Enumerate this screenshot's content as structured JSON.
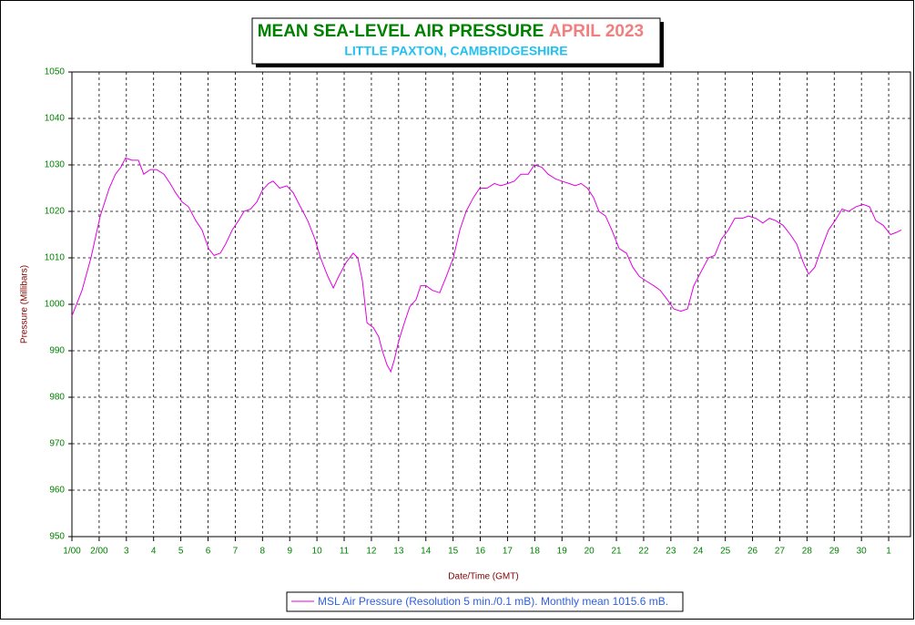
{
  "chart_data": {
    "type": "line",
    "title": "MEAN SEA-LEVEL AIR PRESSURE",
    "period": "APRIL 2023",
    "subtitle": "LITTLE PAXTON, CAMBRIDGESHIRE",
    "xlabel": "Date/Time (GMT)",
    "ylabel": "Pressure (Millibars)",
    "xlim": [
      0,
      30.8
    ],
    "ylim": [
      950,
      1050
    ],
    "xticks": [
      {
        "value": 0,
        "label": "1/00"
      },
      {
        "value": 1,
        "label": "2/00"
      },
      {
        "value": 2,
        "label": "3"
      },
      {
        "value": 3,
        "label": "4"
      },
      {
        "value": 4,
        "label": "5"
      },
      {
        "value": 5,
        "label": "6"
      },
      {
        "value": 6,
        "label": "7"
      },
      {
        "value": 7,
        "label": "8"
      },
      {
        "value": 8,
        "label": "9"
      },
      {
        "value": 9,
        "label": "10"
      },
      {
        "value": 10,
        "label": "11"
      },
      {
        "value": 11,
        "label": "12"
      },
      {
        "value": 12,
        "label": "13"
      },
      {
        "value": 13,
        "label": "14"
      },
      {
        "value": 14,
        "label": "15"
      },
      {
        "value": 15,
        "label": "16"
      },
      {
        "value": 16,
        "label": "17"
      },
      {
        "value": 17,
        "label": "18"
      },
      {
        "value": 18,
        "label": "19"
      },
      {
        "value": 19,
        "label": "20"
      },
      {
        "value": 20,
        "label": "21"
      },
      {
        "value": 21,
        "label": "22"
      },
      {
        "value": 22,
        "label": "23"
      },
      {
        "value": 23,
        "label": "24"
      },
      {
        "value": 24,
        "label": "25"
      },
      {
        "value": 25,
        "label": "26"
      },
      {
        "value": 26,
        "label": "27"
      },
      {
        "value": 27,
        "label": "28"
      },
      {
        "value": 28,
        "label": "29"
      },
      {
        "value": 29,
        "label": "30"
      },
      {
        "value": 30,
        "label": "1"
      }
    ],
    "yticks": [
      950,
      960,
      970,
      980,
      990,
      1000,
      1010,
      1020,
      1030,
      1040,
      1050
    ],
    "grid": true,
    "x": [
      0,
      0.37,
      0.7,
      1.04,
      1.37,
      1.6,
      1.8,
      1.97,
      2.2,
      2.44,
      2.64,
      2.88,
      3.11,
      3.38,
      3.61,
      3.81,
      4.05,
      4.28,
      4.55,
      4.78,
      5.02,
      5.22,
      5.45,
      5.65,
      5.89,
      6.12,
      6.32,
      6.56,
      6.79,
      6.99,
      7.22,
      7.39,
      7.63,
      7.89,
      8.13,
      8.39,
      8.66,
      8.93,
      9.13,
      9.4,
      9.6,
      9.8,
      10.07,
      10.33,
      10.5,
      10.67,
      10.84,
      11.07,
      11.27,
      11.4,
      11.57,
      11.71,
      11.84,
      12.0,
      12.21,
      12.41,
      12.64,
      12.81,
      13.01,
      13.24,
      13.51,
      13.75,
      14.01,
      14.25,
      14.48,
      14.75,
      14.98,
      15.25,
      15.52,
      15.75,
      16.02,
      16.25,
      16.49,
      16.76,
      16.99,
      17.26,
      17.49,
      17.76,
      17.99,
      18.26,
      18.49,
      18.7,
      18.93,
      19.16,
      19.36,
      19.6,
      19.83,
      20.1,
      20.37,
      20.6,
      20.84,
      21.1,
      21.37,
      21.61,
      21.87,
      22.11,
      22.37,
      22.61,
      22.84,
      23.11,
      23.38,
      23.61,
      23.85,
      24.11,
      24.35,
      24.62,
      24.85,
      25.12,
      25.38,
      25.62,
      25.85,
      26.12,
      26.39,
      26.62,
      26.86,
      27.06,
      27.29,
      27.53,
      27.79,
      28.03,
      28.29,
      28.53,
      28.8,
      29.06,
      29.3,
      29.53,
      29.8,
      30.07,
      30.3,
      30.47
    ],
    "series": [
      {
        "name": "MSL Air Pressure (Resolution 5 min./0.1 mB). Monthly mean 1015.6 mB.",
        "color": "#e000e0",
        "values": [
          997.5,
          1003,
          1010,
          1019,
          1025,
          1028,
          1029.5,
          1031.5,
          1031,
          1031,
          1028,
          1029,
          1029,
          1028,
          1026,
          1024,
          1022,
          1021,
          1018,
          1016,
          1012,
          1010.5,
          1011,
          1013,
          1016,
          1018,
          1020,
          1020.5,
          1022,
          1024.5,
          1026,
          1026.5,
          1025,
          1025.5,
          1024,
          1021,
          1018,
          1014,
          1010,
          1006,
          1003.5,
          1006,
          1009,
          1011,
          1010,
          1005,
          996,
          995,
          993,
          990,
          987,
          985.5,
          988,
          992,
          996,
          999.5,
          1001,
          1004,
          1004,
          1003,
          1002.5,
          1006,
          1010,
          1016,
          1020,
          1023,
          1025,
          1025,
          1026,
          1025.5,
          1026,
          1026.5,
          1028,
          1028,
          1030,
          1029.5,
          1028,
          1027,
          1026.5,
          1026,
          1025.5,
          1026,
          1025,
          1023,
          1020,
          1019,
          1016,
          1012,
          1011,
          1008,
          1006,
          1005,
          1004,
          1003,
          1001,
          999,
          998.5,
          999,
          1004,
          1007,
          1010,
          1010.5,
          1014,
          1016,
          1018.5,
          1018.5,
          1019,
          1018.5,
          1017.5,
          1018.5,
          1018,
          1017,
          1015,
          1013,
          1009,
          1006.5,
          1008,
          1012,
          1016,
          1018,
          1020.5,
          1020,
          1021,
          1021.5,
          1021,
          1018,
          1017,
          1015,
          1015.5,
          1016
        ]
      }
    ]
  }
}
